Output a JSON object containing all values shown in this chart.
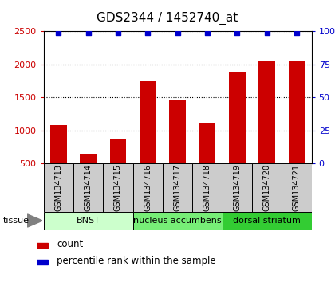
{
  "title": "GDS2344 / 1452740_at",
  "samples": [
    "GSM134713",
    "GSM134714",
    "GSM134715",
    "GSM134716",
    "GSM134717",
    "GSM134718",
    "GSM134719",
    "GSM134720",
    "GSM134721"
  ],
  "counts": [
    1080,
    650,
    880,
    1740,
    1450,
    1110,
    1870,
    2040,
    2040
  ],
  "percentiles": [
    99,
    99,
    99,
    99,
    99,
    99,
    99,
    99,
    99
  ],
  "bar_color": "#cc0000",
  "dot_color": "#0000cc",
  "ylim_left": [
    500,
    2500
  ],
  "ylim_right": [
    0,
    100
  ],
  "yticks_left": [
    500,
    1000,
    1500,
    2000,
    2500
  ],
  "yticks_right": [
    0,
    25,
    50,
    75,
    100
  ],
  "ytick_labels_right": [
    "0",
    "25",
    "50",
    "75",
    "100%"
  ],
  "groups": [
    {
      "label": "BNST",
      "start": 0,
      "end": 3,
      "color": "#ccffcc"
    },
    {
      "label": "nucleus accumbens",
      "start": 3,
      "end": 6,
      "color": "#77ee77"
    },
    {
      "label": "dorsal striatum",
      "start": 6,
      "end": 9,
      "color": "#33cc33"
    }
  ],
  "tissue_label": "tissue",
  "legend_count_label": "count",
  "legend_pct_label": "percentile rank within the sample",
  "bg_color": "#ffffff",
  "plot_bg": "#ffffff",
  "sample_bg": "#cccccc",
  "bar_width": 0.55,
  "label_fontsize": 7,
  "title_fontsize": 11
}
